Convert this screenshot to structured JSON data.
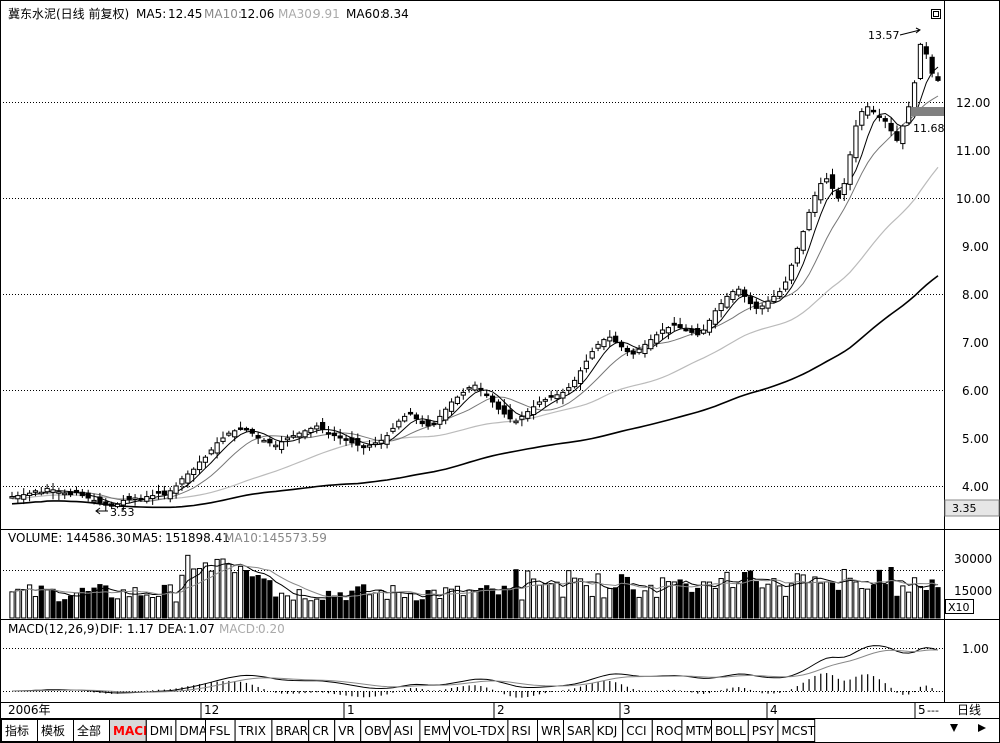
{
  "header": {
    "title": "冀东水泥(日线 前复权)",
    "ma5_label": "MA5:",
    "ma5_value": "12.45",
    "ma10_label": "MA10:",
    "ma10_value": "12.06",
    "ma30_label": "MA30:",
    "ma30_value": "9.91",
    "ma60_label": "MA60:",
    "ma60_value": "8.34"
  },
  "annotations": {
    "high_label": "13.57",
    "low_label": "3.53",
    "mark_label": "11.68",
    "cursor_price": "3.35"
  },
  "volume_header": {
    "volume_label": "VOLUME:",
    "volume_value": "144586.30",
    "ma5_label": "MA5:",
    "ma5_value": "151898.41",
    "ma10_label": "MA10:",
    "ma10_value": "145573.59",
    "unit_label": "X10"
  },
  "macd_header": {
    "name": "MACD(12,26,9)",
    "dif_label": "DIF:",
    "dif_value": "1.17",
    "dea_label": "DEA:",
    "dea_value": "1.07",
    "macd_label": "MACD:",
    "macd_value": "0.20"
  },
  "axis": {
    "year": "2006年",
    "month_ticks": [
      "12",
      "1",
      "2",
      "3",
      "4",
      "5"
    ],
    "price_ticks": [
      "12.00",
      "11.00",
      "10.00",
      "9.00",
      "8.00",
      "7.00",
      "6.00",
      "5.00",
      "4.00"
    ],
    "volume_ticks": [
      "30000",
      "15000"
    ],
    "macd_ticks": [
      "1.00"
    ],
    "period_label": "日线"
  },
  "tabs": [
    "指标",
    "模板",
    "全部",
    "MACD",
    "DMI",
    "DMA",
    "FSL",
    "TRIX",
    "BRAR",
    "CR",
    "VR",
    "OBV",
    "ASI",
    "EMV",
    "VOL-TDX",
    "RSI",
    "WR",
    "SAR",
    "KDJ",
    "CCI",
    "ROC",
    "MTM",
    "BOLL",
    "PSY",
    "MCST"
  ],
  "active_tab": "MACD",
  "colors": {
    "up": "#000000",
    "down": "#000000",
    "ma30": "#bbbbbb",
    "active_tab": "#ff0000",
    "background": "#ffffff"
  },
  "chart_data": {
    "type": "candlestick",
    "title": "冀东水泥(日线 前复权)",
    "price_range": [
      3.35,
      13.57
    ],
    "close_series": [
      3.78,
      3.8,
      3.82,
      3.85,
      3.9,
      3.87,
      3.95,
      3.92,
      3.88,
      3.85,
      3.82,
      3.86,
      3.8,
      3.75,
      3.7,
      3.65,
      3.6,
      3.58,
      3.62,
      3.7,
      3.72,
      3.75,
      3.73,
      3.78,
      3.8,
      3.85,
      3.82,
      3.9,
      4.0,
      4.15,
      4.25,
      4.35,
      4.5,
      4.6,
      4.75,
      4.9,
      5.0,
      5.1,
      5.15,
      5.2,
      5.18,
      5.1,
      5.0,
      4.95,
      4.9,
      4.85,
      4.92,
      5.0,
      5.05,
      5.1,
      5.15,
      5.2,
      5.25,
      5.18,
      5.1,
      5.05,
      5.0,
      4.95,
      4.9,
      4.85,
      4.8,
      4.85,
      4.9,
      4.95,
      5.05,
      5.2,
      5.35,
      5.45,
      5.5,
      5.4,
      5.3,
      5.25,
      5.3,
      5.45,
      5.6,
      5.75,
      5.85,
      5.95,
      6.05,
      6.1,
      6.0,
      5.9,
      5.75,
      5.6,
      5.5,
      5.4,
      5.35,
      5.45,
      5.55,
      5.65,
      5.75,
      5.8,
      5.85,
      5.9,
      5.95,
      6.05,
      6.2,
      6.4,
      6.6,
      6.8,
      6.95,
      7.05,
      7.1,
      7.0,
      6.9,
      6.8,
      6.75,
      6.85,
      6.95,
      7.05,
      7.15,
      7.25,
      7.3,
      7.35,
      7.3,
      7.25,
      7.2,
      7.15,
      7.25,
      7.45,
      7.65,
      7.8,
      7.95,
      8.05,
      8.1,
      7.95,
      7.8,
      7.7,
      7.75,
      7.85,
      7.95,
      8.05,
      8.25,
      8.6,
      8.95,
      9.3,
      9.7,
      10.05,
      10.3,
      10.4,
      10.2,
      10.0,
      10.3,
      10.9,
      11.5,
      11.8,
      11.9,
      11.8,
      11.7,
      11.6,
      11.4,
      11.2,
      11.5,
      11.9,
      12.4,
      13.2,
      13.0,
      12.6,
      12.45
    ]
  }
}
